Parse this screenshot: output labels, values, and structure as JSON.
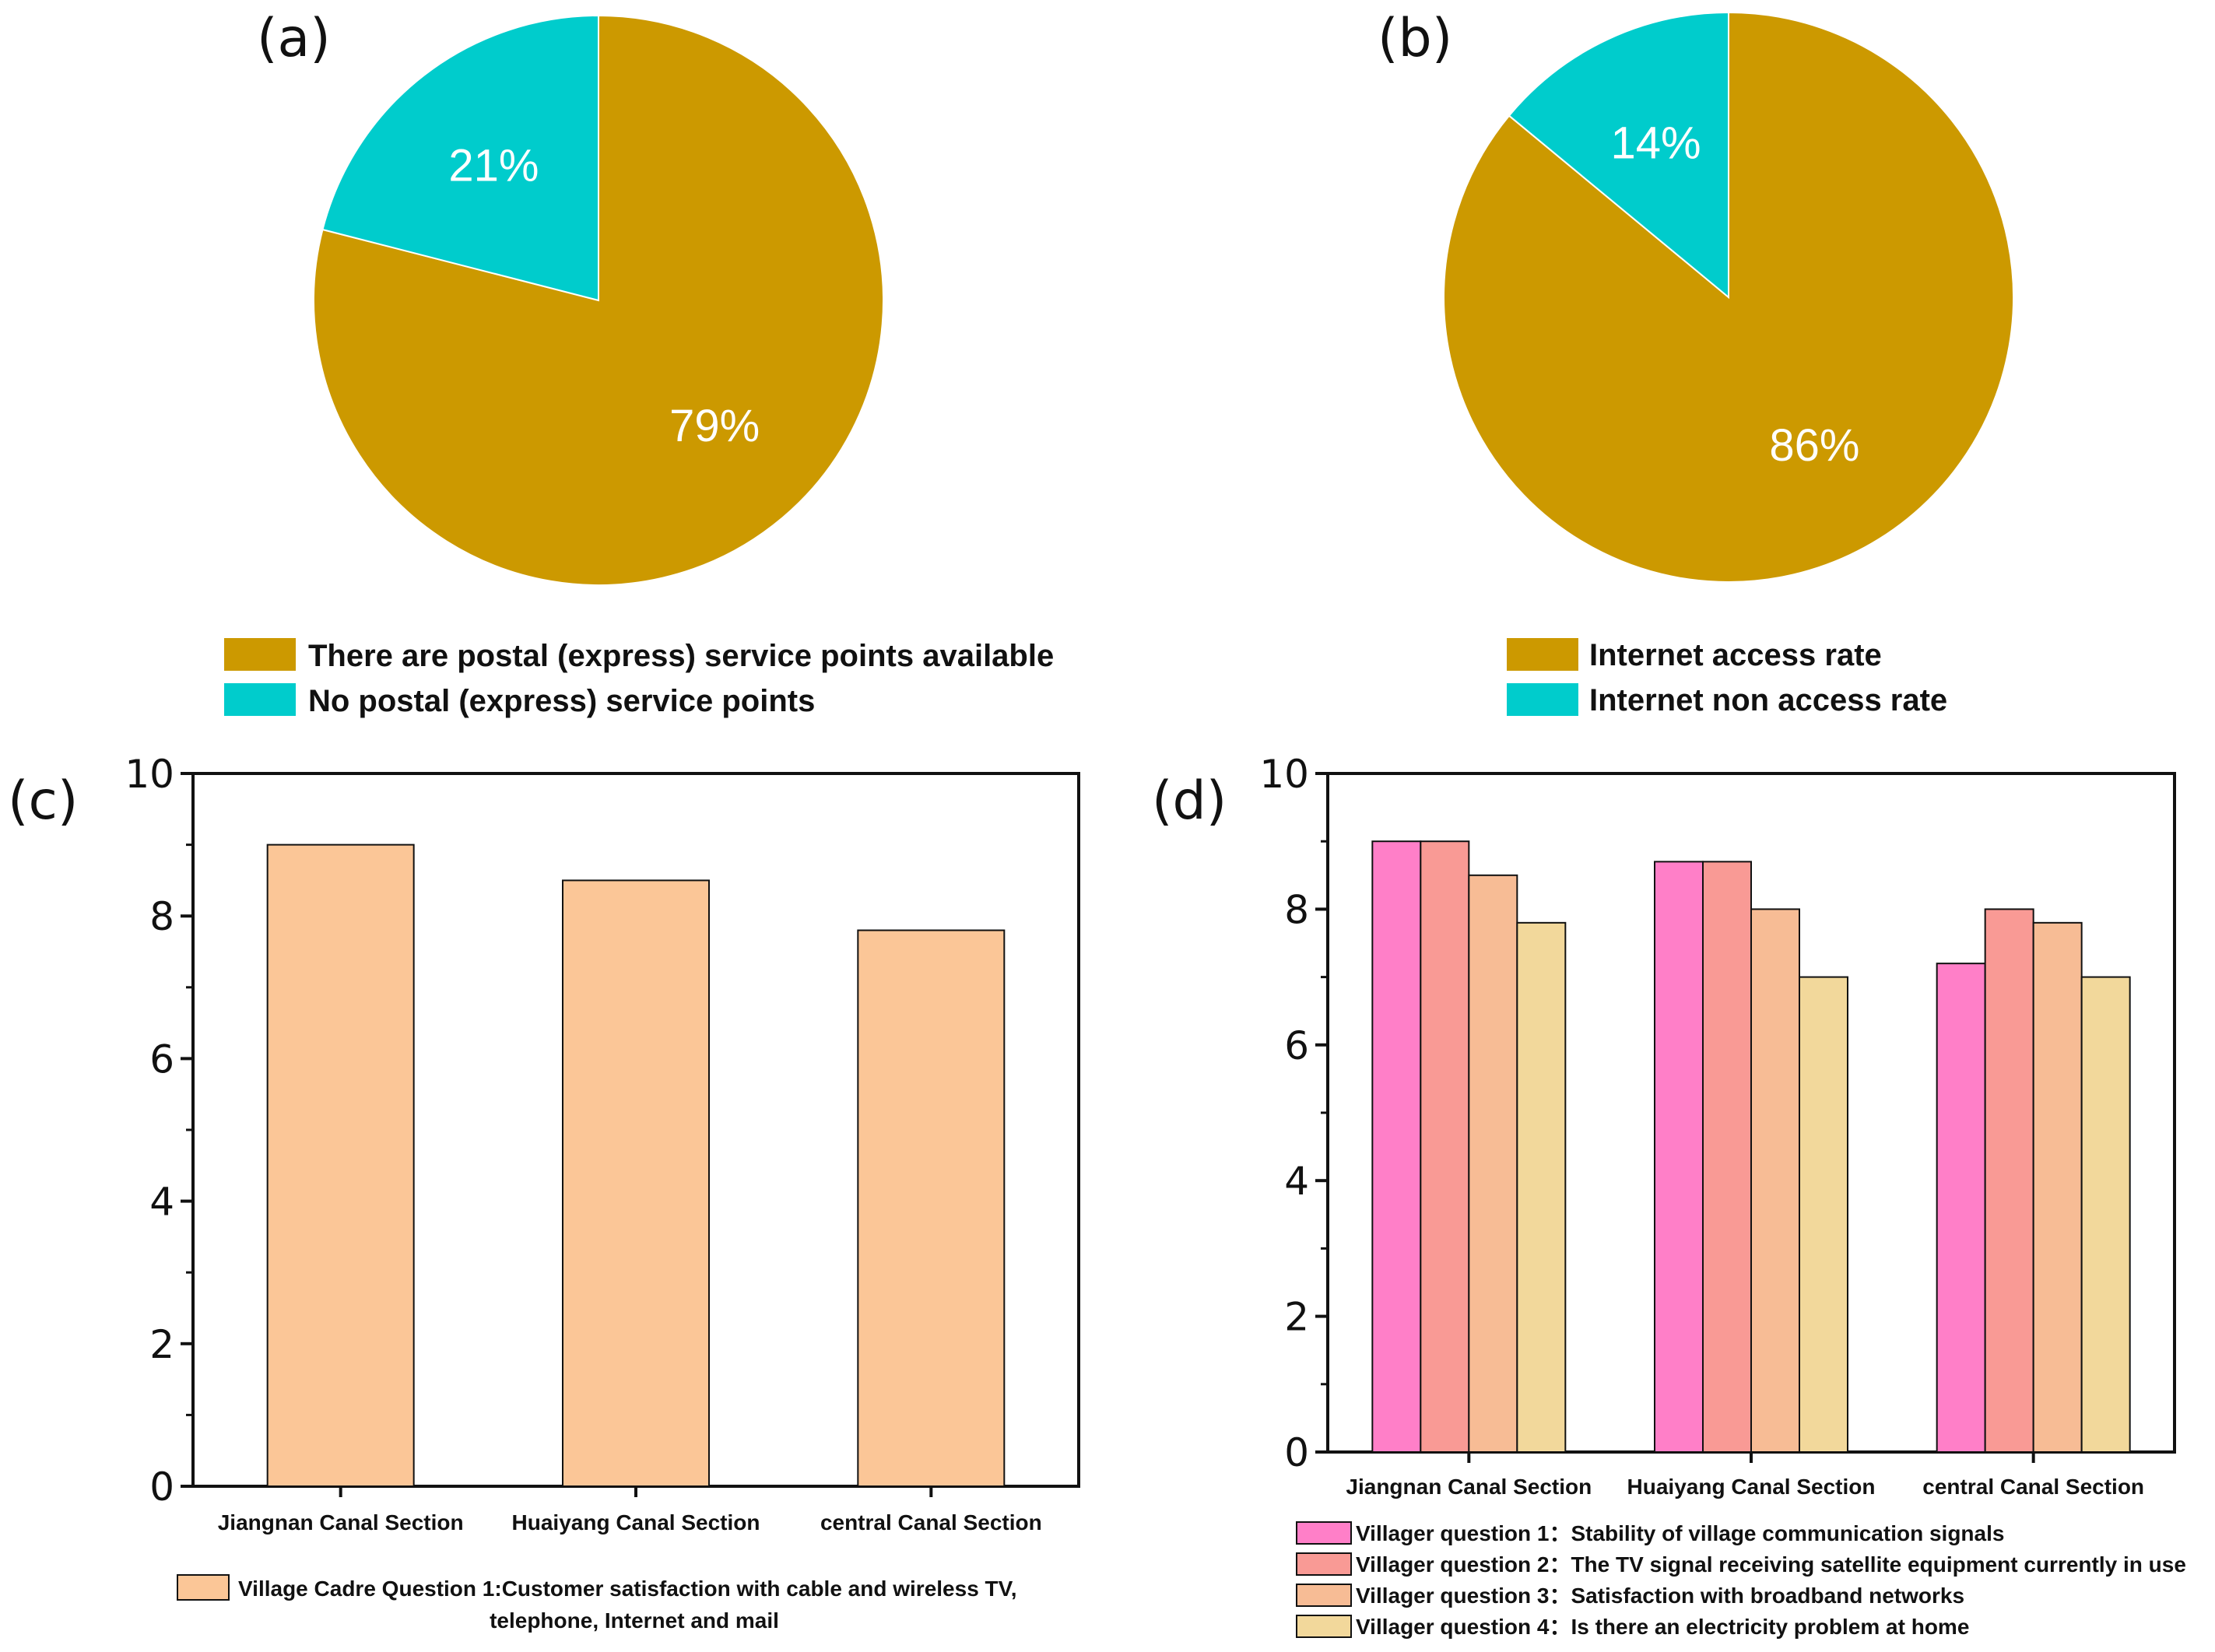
{
  "chart_data": [
    {
      "panel": "(a)",
      "type": "pie",
      "slices": [
        {
          "label": "There are postal (express) service points available",
          "value": 79,
          "display": "79%",
          "color": "#CC9900"
        },
        {
          "label": "No postal (express) service points",
          "value": 21,
          "display": "21%",
          "color": "#00CCCC"
        }
      ]
    },
    {
      "panel": "(b)",
      "type": "pie",
      "slices": [
        {
          "label": "Internet access rate",
          "value": 86,
          "display": "86%",
          "color": "#CC9900"
        },
        {
          "label": "Internet non access rate",
          "value": 14,
          "display": "14%",
          "color": "#00CCCC"
        }
      ]
    },
    {
      "panel": "(c)",
      "type": "bar",
      "categories": [
        "Jiangnan Canal Section",
        "Huaiyang Canal Section",
        "central Canal Section"
      ],
      "series": [
        {
          "name": "Village Cadre Question 1:Customer satisfaction with cable and wireless TV,",
          "name_line2": "telephone, Internet and mail",
          "values": [
            9.0,
            8.5,
            7.8
          ],
          "color": "#FBC697"
        }
      ],
      "ylim": [
        0,
        10
      ],
      "yticks": [
        "0",
        "2",
        "4",
        "6",
        "8",
        "10"
      ]
    },
    {
      "panel": "(d)",
      "type": "bar",
      "categories": [
        "Jiangnan Canal Section",
        "Huaiyang Canal Section",
        "central Canal Section"
      ],
      "series": [
        {
          "name": "Villager question 1：Stability of village communication signals",
          "values": [
            9.0,
            8.7,
            7.2
          ],
          "color": "#FF7FC8"
        },
        {
          "name": "Villager question 2：The TV signal receiving satellite equipment currently in use",
          "values": [
            9.0,
            8.7,
            8.0
          ],
          "color": "#F99A95"
        },
        {
          "name": "Villager question 3：Satisfaction with broadband networks",
          "values": [
            8.5,
            8.0,
            7.8
          ],
          "color": "#F7BC95"
        },
        {
          "name": "Villager question 4：Is there an electricity problem at home",
          "values": [
            7.8,
            7.0,
            7.0
          ],
          "color": "#F2D89B"
        }
      ],
      "ylim": [
        0,
        10
      ],
      "yticks": [
        "0",
        "2",
        "4",
        "6",
        "8",
        "10"
      ]
    }
  ]
}
